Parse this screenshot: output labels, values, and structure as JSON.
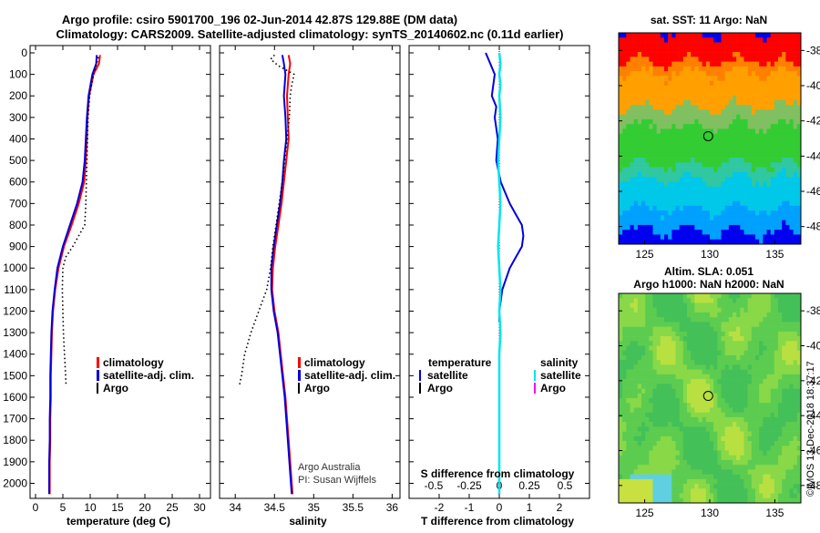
{
  "title": {
    "line1": "Argo profile: csiro 5901700_196 02-Jun-2014 42.87S 129.88E (DM data)",
    "line2": "Climatology: CARS2009. Satellite-adjusted climatology: synTS_20140602.nc (0.11d earlier)"
  },
  "watermark": "©IMOS 13-Dec-2018 18:37:17",
  "credit": {
    "line1": "Argo Australia",
    "line2": "PI: Susan Wijffels"
  },
  "colors": {
    "climatology": "#ff0000",
    "satellite": "#0000dd",
    "argo": "#000000",
    "sal_satellite": "#00e5ee",
    "sal_argo": "#ff00ff"
  },
  "chart_data": [
    {
      "type": "line",
      "id": "temperature",
      "xlabel": "temperature (deg C)",
      "xlim": [
        -1,
        32
      ],
      "ylim": [
        2070,
        0
      ],
      "xticks": [
        0,
        5,
        10,
        15,
        20,
        25,
        30
      ],
      "yticks": [
        0,
        100,
        200,
        300,
        400,
        500,
        600,
        700,
        800,
        900,
        1000,
        1100,
        1200,
        1300,
        1400,
        1500,
        1600,
        1700,
        1800,
        1900,
        2000
      ],
      "legend": [
        "climatology",
        "satellite-adj. clim.",
        "Argo"
      ],
      "series": [
        {
          "name": "climatology",
          "depth": [
            10,
            50,
            100,
            200,
            300,
            400,
            500,
            600,
            700,
            800,
            900,
            1000,
            1100,
            1200,
            1300,
            1400,
            1500,
            1600,
            1700,
            1800,
            1900,
            2000,
            2050
          ],
          "values": [
            11.8,
            11.6,
            10.6,
            9.8,
            9.5,
            9.4,
            9.2,
            8.9,
            7.9,
            6.6,
            5.2,
            4.2,
            3.6,
            3.2,
            3.0,
            2.9,
            2.8,
            2.8,
            2.7,
            2.7,
            2.6,
            2.6,
            2.6
          ]
        },
        {
          "name": "satellite-adj. clim.",
          "depth": [
            10,
            50,
            100,
            200,
            300,
            400,
            500,
            600,
            700,
            800,
            900,
            1000,
            1100,
            1200,
            1300,
            1400,
            1500,
            1600,
            1700,
            1800,
            1900,
            2000,
            2050
          ],
          "values": [
            11.2,
            11.1,
            10.4,
            9.7,
            9.4,
            9.2,
            9.0,
            8.6,
            7.6,
            6.3,
            5.0,
            4.0,
            3.5,
            3.1,
            2.9,
            2.8,
            2.7,
            2.7,
            2.6,
            2.6,
            2.5,
            2.5,
            2.5
          ]
        },
        {
          "name": "Argo",
          "depth": [
            20,
            100,
            200,
            300,
            400,
            500,
            600,
            700,
            800,
            900,
            950,
            1000,
            1100,
            1200,
            1300,
            1400,
            1500,
            1550
          ],
          "values": [
            11.5,
            10.6,
            9.9,
            9.6,
            9.5,
            9.4,
            9.3,
            9.2,
            9.0,
            6.8,
            5.5,
            5.0,
            4.9,
            5.0,
            5.1,
            5.3,
            5.5,
            5.6
          ]
        }
      ]
    },
    {
      "type": "line",
      "id": "salinity",
      "xlabel": "salinity",
      "xlim": [
        33.8,
        36.1
      ],
      "ylim": [
        2070,
        0
      ],
      "xticks": [
        34,
        34.5,
        35,
        35.5,
        36
      ],
      "legend": [
        "climatology",
        "satellite-adj. clim.",
        "Argo"
      ],
      "series": [
        {
          "name": "climatology",
          "depth": [
            10,
            50,
            100,
            200,
            300,
            400,
            500,
            600,
            700,
            800,
            900,
            1000,
            1100,
            1200,
            1300,
            1400,
            1500,
            1600,
            1700,
            1800,
            1900,
            2000,
            2050
          ],
          "values": [
            34.68,
            34.7,
            34.68,
            34.66,
            34.67,
            34.68,
            34.65,
            34.62,
            34.59,
            34.55,
            34.51,
            34.48,
            34.47,
            34.5,
            34.55,
            34.58,
            34.61,
            34.64,
            34.66,
            34.68,
            34.7,
            34.72,
            34.73
          ]
        },
        {
          "name": "satellite-adj. clim.",
          "depth": [
            10,
            50,
            100,
            200,
            300,
            400,
            500,
            600,
            700,
            800,
            900,
            1000,
            1100,
            1200,
            1300,
            1400,
            1500,
            1600,
            1700,
            1800,
            1900,
            2000,
            2050
          ],
          "values": [
            34.6,
            34.62,
            34.64,
            34.62,
            34.64,
            34.65,
            34.62,
            34.6,
            34.57,
            34.53,
            34.49,
            34.46,
            34.46,
            34.49,
            34.54,
            34.57,
            34.6,
            34.63,
            34.65,
            34.67,
            34.69,
            34.71,
            34.72
          ]
        },
        {
          "name": "Argo",
          "depth": [
            10,
            30,
            60,
            100,
            150,
            200,
            300,
            400,
            500,
            600,
            700,
            800,
            900,
            1000,
            1100,
            1200,
            1300,
            1400,
            1500,
            1550
          ],
          "values": [
            34.5,
            34.45,
            34.55,
            34.75,
            34.72,
            34.7,
            34.69,
            34.66,
            34.63,
            34.6,
            34.56,
            34.52,
            34.48,
            34.45,
            34.4,
            34.3,
            34.2,
            34.12,
            34.08,
            34.05
          ]
        }
      ]
    },
    {
      "type": "line",
      "id": "difference",
      "xlabel": "T difference from climatology",
      "xlabel2": "S difference from climatology",
      "xlim": [
        -3,
        3
      ],
      "ylim": [
        2070,
        0
      ],
      "xticks": [
        -2,
        -1,
        0,
        1,
        2
      ],
      "xticks_s": [
        "-0.5",
        "-0.25",
        "0",
        "0.25",
        "0.5"
      ],
      "legend_t": [
        "temperature",
        "satellite",
        "Argo"
      ],
      "legend_s": [
        "salinity",
        "satellite",
        "Argo"
      ],
      "series": [
        {
          "name": "temperature satellite",
          "depth": [
            0,
            50,
            100,
            150,
            200,
            250,
            300,
            400,
            500,
            600,
            700,
            750,
            800,
            850,
            900,
            950,
            1000,
            1100,
            1200,
            1250
          ],
          "values": [
            -0.45,
            -0.3,
            -0.15,
            -0.2,
            -0.25,
            -0.1,
            -0.15,
            -0.05,
            -0.1,
            0.05,
            0.35,
            0.55,
            0.75,
            0.8,
            0.75,
            0.55,
            0.35,
            0.1,
            0.0,
            0.0
          ]
        },
        {
          "name": "salinity satellite",
          "depth": [
            0,
            50,
            100,
            150,
            200,
            300,
            400,
            500,
            600,
            700,
            800,
            900,
            1000,
            1100,
            1200,
            1300,
            1400,
            1500,
            1600,
            1700,
            1800,
            1900,
            2000,
            2050
          ],
          "values": [
            0.0,
            0.01,
            0.0,
            0.01,
            0.0,
            0.01,
            0.0,
            -0.01,
            0.0,
            0.01,
            0.0,
            -0.01,
            0.0,
            0.01,
            0.0,
            0.01,
            0.0,
            0.0,
            0.0,
            0.0,
            0.0,
            0.0,
            0.0,
            0.0
          ]
        }
      ]
    },
    {
      "type": "heatmap",
      "id": "sst-map",
      "title": "sat. SST: 11 Argo: NaN",
      "xlim": [
        123,
        137
      ],
      "ylim": [
        -49,
        -37
      ],
      "xticks": [
        125,
        130,
        135
      ],
      "yticks": [
        -38,
        -40,
        -42,
        -44,
        -46,
        -48
      ],
      "marker": {
        "lon": 129.88,
        "lat": -42.87
      },
      "bands": [
        {
          "lat_top": -37,
          "lat_bottom": -38.7,
          "color": "#ff0000"
        },
        {
          "lat_top": -38.7,
          "lat_bottom": -39.3,
          "color": "#ff8000"
        },
        {
          "lat_top": -39.3,
          "lat_bottom": -41.2,
          "color": "#ffa000"
        },
        {
          "lat_top": -41.2,
          "lat_bottom": -42.3,
          "color": "#80c060"
        },
        {
          "lat_top": -42.3,
          "lat_bottom": -44.5,
          "color": "#33cc33"
        },
        {
          "lat_top": -44.5,
          "lat_bottom": -45.3,
          "color": "#30c8a0"
        },
        {
          "lat_top": -45.3,
          "lat_bottom": -47.0,
          "color": "#00c8e8"
        },
        {
          "lat_top": -47.0,
          "lat_bottom": -48.3,
          "color": "#00a0ff"
        },
        {
          "lat_top": -48.3,
          "lat_bottom": -49,
          "color": "#0000ee"
        }
      ]
    },
    {
      "type": "heatmap",
      "id": "sla-map",
      "title_line1": "Altim. SLA: 0.051",
      "title_line2": "Argo h1000: NaN h2000: NaN",
      "xlim": [
        123,
        137
      ],
      "ylim": [
        -49,
        -37
      ],
      "xticks": [
        125,
        130,
        135
      ],
      "yticks": [
        -38,
        -40,
        -42,
        -44,
        -46,
        -48
      ],
      "marker": {
        "lon": 129.88,
        "lat": -42.87
      }
    }
  ]
}
